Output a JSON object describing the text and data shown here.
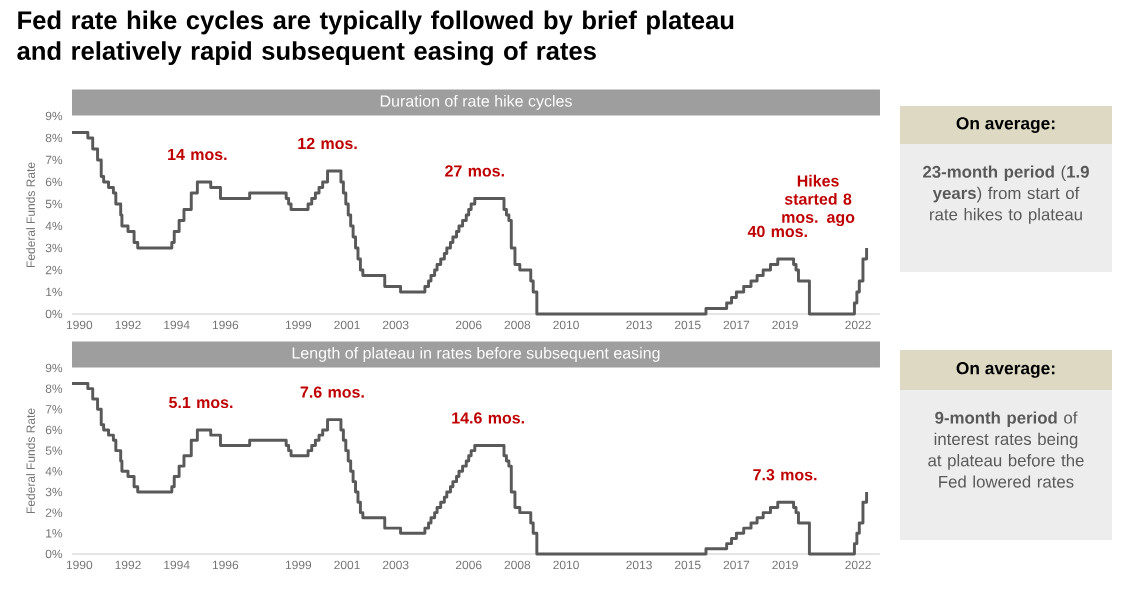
{
  "chart_data": [
    {
      "type": "step",
      "title": "Fed rate hike cycles are typically followed by brief plateau and relatively rapid subsequent easing of rates",
      "subtitle": "Duration of rate hike cycles",
      "ylabel": "Federal Funds Rate",
      "color": "#595959",
      "x": [
        1989.7,
        1990.35,
        1990.55,
        1990.75,
        1990.9,
        1991.0,
        1991.2,
        1991.4,
        1991.5,
        1991.7,
        1991.75,
        1992.0,
        1992.25,
        1992.4,
        1993.8,
        1993.9,
        1994.1,
        1994.3,
        1994.6,
        1994.85,
        1995.4,
        1995.8,
        1997.0,
        1998.5,
        1998.6,
        1998.7,
        1999.4,
        1999.55,
        1999.7,
        1999.85,
        2000.0,
        2000.2,
        2000.75,
        2000.85,
        2000.95,
        2001.05,
        2001.15,
        2001.25,
        2001.35,
        2001.45,
        2001.55,
        2001.65,
        2002.55,
        2003.2,
        2004.2,
        2004.35,
        2004.45,
        2004.6,
        2004.7,
        2004.85,
        2005.0,
        2005.1,
        2005.25,
        2005.35,
        2005.5,
        2005.6,
        2005.75,
        2005.9,
        2006.0,
        2006.1,
        2006.25,
        2007.45,
        2007.55,
        2007.65,
        2007.75,
        2007.9,
        2008.1,
        2008.55,
        2008.65,
        2008.8,
        2015.75,
        2016.6,
        2016.8,
        2017.0,
        2017.3,
        2017.6,
        2017.85,
        2018.1,
        2018.4,
        2018.7,
        2019.35,
        2019.45,
        2019.55,
        2020.0,
        2021.85,
        2021.95,
        2022.05,
        2022.2,
        2022.35
      ],
      "values": [
        8.25,
        8.0,
        7.5,
        7.0,
        6.25,
        6.0,
        5.75,
        5.5,
        5.0,
        4.5,
        4.0,
        3.75,
        3.25,
        3.0,
        3.25,
        3.75,
        4.25,
        4.75,
        5.5,
        6.0,
        5.75,
        5.25,
        5.5,
        5.25,
        5.0,
        4.75,
        5.0,
        5.25,
        5.5,
        5.75,
        6.0,
        6.5,
        6.0,
        5.5,
        5.0,
        4.5,
        4.0,
        3.5,
        3.0,
        2.5,
        2.0,
        1.75,
        1.25,
        1.0,
        1.25,
        1.5,
        1.75,
        2.0,
        2.25,
        2.5,
        2.75,
        3.0,
        3.25,
        3.5,
        3.75,
        4.0,
        4.25,
        4.5,
        4.75,
        5.0,
        5.25,
        4.75,
        4.5,
        4.25,
        3.0,
        2.25,
        2.0,
        1.5,
        1.0,
        0,
        0.25,
        0.5,
        0.75,
        1.0,
        1.25,
        1.5,
        1.75,
        2.0,
        2.25,
        2.5,
        2.25,
        2.0,
        1.5,
        0,
        0.5,
        1.0,
        1.5,
        2.5,
        3.0
      ],
      "xlim": [
        1989.7,
        2022.9
      ],
      "ylim": [
        0,
        9
      ],
      "xticks": [
        1990,
        1992,
        1994,
        1996,
        1999,
        2001,
        2003,
        2006,
        2008,
        2010,
        2013,
        2015,
        2017,
        2019,
        2022
      ],
      "yticks": [
        {
          "value": 0,
          "label": "0%"
        },
        {
          "value": 1,
          "label": "1%"
        },
        {
          "value": 2,
          "label": "2%"
        },
        {
          "value": 3,
          "label": "3%"
        },
        {
          "value": 4,
          "label": "4%"
        },
        {
          "value": 5,
          "label": "5%"
        },
        {
          "value": 6,
          "label": "6%"
        },
        {
          "value": 7,
          "label": "7%"
        },
        {
          "value": 8,
          "label": "8%"
        },
        {
          "value": 9,
          "label": "9%"
        }
      ],
      "annotations": [
        {
          "text": "14 mos.",
          "x": 1994.85,
          "y": 6.0
        },
        {
          "text": "12 mos.",
          "x": 2000.2,
          "y": 6.5
        },
        {
          "text": "27 mos.",
          "x": 2006.25,
          "y": 5.25
        },
        {
          "text": "40 mos.",
          "x": 2018.7,
          "y": 2.5
        },
        {
          "text": "Hikes started 8 mos. ago",
          "x": 2022.35,
          "y": 3.0
        }
      ]
    },
    {
      "type": "other",
      "title": "On average:",
      "annotations": [
        "**23-month period** (**1.9 years**) from start of rate hikes to plateau"
      ]
    },
    {
      "type": "step",
      "subtitle": "Length of plateau in rates before subsequent easing",
      "ylabel": "Federal Funds Rate",
      "color": "#595959",
      "x": [
        1989.7,
        1990.35,
        1990.55,
        1990.75,
        1990.9,
        1991.0,
        1991.2,
        1991.4,
        1991.5,
        1991.7,
        1991.75,
        1992.0,
        1992.25,
        1992.4,
        1993.8,
        1993.9,
        1994.1,
        1994.3,
        1994.6,
        1994.85,
        1995.4,
        1995.8,
        1997.0,
        1998.5,
        1998.6,
        1998.7,
        1999.4,
        1999.55,
        1999.7,
        1999.85,
        2000.0,
        2000.2,
        2000.75,
        2000.85,
        2000.95,
        2001.05,
        2001.15,
        2001.25,
        2001.35,
        2001.45,
        2001.55,
        2001.65,
        2002.55,
        2003.2,
        2004.2,
        2004.35,
        2004.45,
        2004.6,
        2004.7,
        2004.85,
        2005.0,
        2005.1,
        2005.25,
        2005.35,
        2005.5,
        2005.6,
        2005.75,
        2005.9,
        2006.0,
        2006.1,
        2006.25,
        2007.45,
        2007.55,
        2007.65,
        2007.75,
        2007.9,
        2008.1,
        2008.55,
        2008.65,
        2008.8,
        2015.75,
        2016.6,
        2016.8,
        2017.0,
        2017.3,
        2017.6,
        2017.85,
        2018.1,
        2018.4,
        2018.7,
        2019.35,
        2019.45,
        2019.55,
        2020.0,
        2021.85,
        2021.95,
        2022.05,
        2022.2,
        2022.35
      ],
      "values": [
        8.25,
        8.0,
        7.5,
        7.0,
        6.25,
        6.0,
        5.75,
        5.5,
        5.0,
        4.5,
        4.0,
        3.75,
        3.25,
        3.0,
        3.25,
        3.75,
        4.25,
        4.75,
        5.5,
        6.0,
        5.75,
        5.25,
        5.5,
        5.25,
        5.0,
        4.75,
        5.0,
        5.25,
        5.5,
        5.75,
        6.0,
        6.5,
        6.0,
        5.5,
        5.0,
        4.5,
        4.0,
        3.5,
        3.0,
        2.5,
        2.0,
        1.75,
        1.25,
        1.0,
        1.25,
        1.5,
        1.75,
        2.0,
        2.25,
        2.5,
        2.75,
        3.0,
        3.25,
        3.5,
        3.75,
        4.0,
        4.25,
        4.5,
        4.75,
        5.0,
        5.25,
        4.75,
        4.5,
        4.25,
        3.0,
        2.25,
        2.0,
        1.5,
        1.0,
        0,
        0.25,
        0.5,
        0.75,
        1.0,
        1.25,
        1.5,
        1.75,
        2.0,
        2.25,
        2.5,
        2.25,
        2.0,
        1.5,
        0,
        0.5,
        1.0,
        1.5,
        2.5,
        3.0
      ],
      "xlim": [
        1989.7,
        2022.9
      ],
      "ylim": [
        0,
        9
      ],
      "xticks": [
        1990,
        1992,
        1994,
        1996,
        1999,
        2001,
        2003,
        2006,
        2008,
        2010,
        2013,
        2015,
        2017,
        2019,
        2022
      ],
      "yticks": [
        {
          "value": 0,
          "label": "0%"
        },
        {
          "value": 1,
          "label": "1%"
        },
        {
          "value": 2,
          "label": "2%"
        },
        {
          "value": 3,
          "label": "3%"
        },
        {
          "value": 4,
          "label": "4%"
        },
        {
          "value": 5,
          "label": "5%"
        },
        {
          "value": 6,
          "label": "6%"
        },
        {
          "value": 7,
          "label": "7%"
        },
        {
          "value": 8,
          "label": "8%"
        },
        {
          "value": 9,
          "label": "9%"
        }
      ],
      "annotations": [
        {
          "text": "5.1 mos.",
          "x": 1995.0,
          "y": 6.0
        },
        {
          "text": "7.6 mos.",
          "x": 2000.4,
          "y": 6.5
        },
        {
          "text": "14.6 mos.",
          "x": 2006.8,
          "y": 5.25
        },
        {
          "text": "7.3 mos.",
          "x": 2019.0,
          "y": 2.5
        }
      ]
    },
    {
      "type": "other",
      "title": "On average:",
      "annotations": [
        "**9-month period** of interest rates being at plateau before the Fed lowered rates"
      ]
    }
  ]
}
